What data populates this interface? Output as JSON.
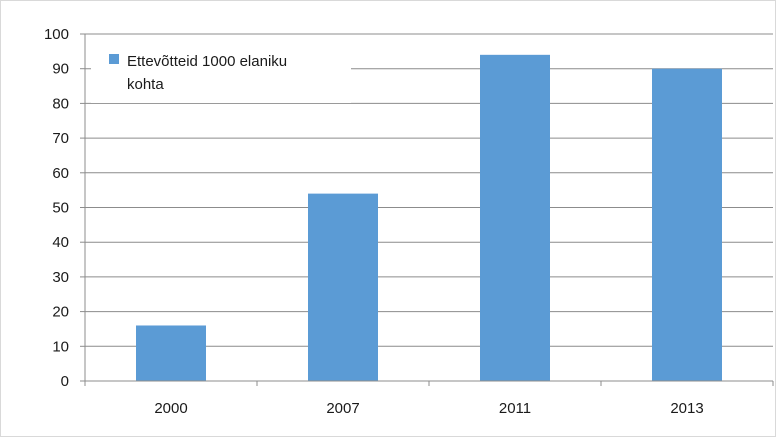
{
  "chart_data": {
    "type": "bar",
    "title": "",
    "xlabel": "",
    "ylabel": "",
    "categories": [
      "2000",
      "2007",
      "2011",
      "2013"
    ],
    "series": [
      {
        "name": "Ettevõtteid 1000 elaniku kohta",
        "values": [
          16,
          54,
          94,
          90
        ],
        "color": "#5b9bd5"
      }
    ],
    "ylim": [
      0,
      100
    ],
    "yticks": [
      0,
      10,
      20,
      30,
      40,
      50,
      60,
      70,
      80,
      90,
      100
    ],
    "grid": true,
    "legend": {
      "position": "top-left",
      "lines": [
        "Ettevõtteid 1000 elaniku",
        "kohta"
      ]
    }
  }
}
